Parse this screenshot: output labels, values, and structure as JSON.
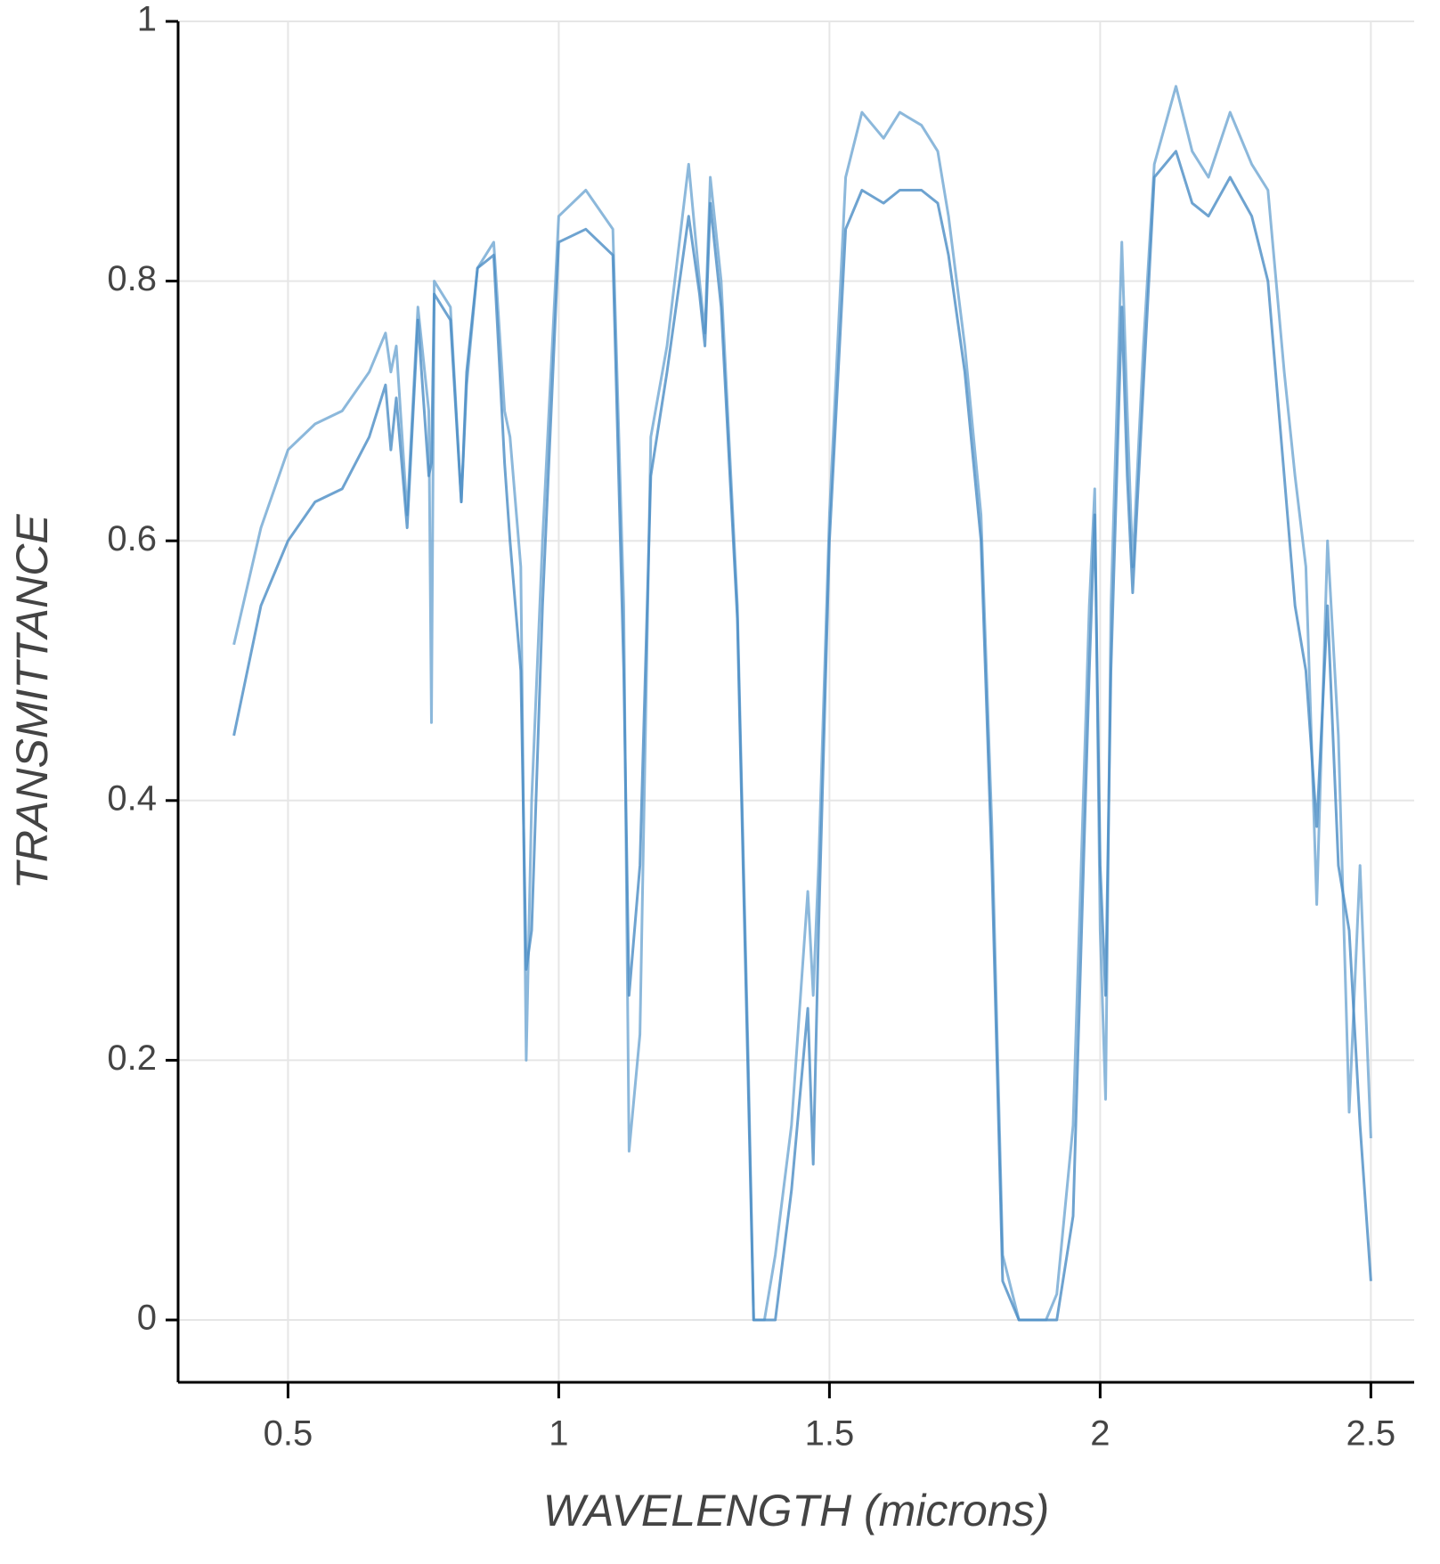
{
  "chart_data": {
    "type": "line",
    "x_label": "WAVELENGTH (microns)",
    "y_label": "TRANSMITTANCE",
    "x": [
      0.4,
      0.45,
      0.5,
      0.55,
      0.6,
      0.65,
      0.68,
      0.69,
      0.7,
      0.72,
      0.74,
      0.76,
      0.765,
      0.77,
      0.8,
      0.82,
      0.83,
      0.85,
      0.88,
      0.9,
      0.91,
      0.93,
      0.94,
      0.95,
      0.97,
      1.0,
      1.05,
      1.1,
      1.12,
      1.13,
      1.15,
      1.17,
      1.2,
      1.24,
      1.26,
      1.27,
      1.28,
      1.3,
      1.33,
      1.35,
      1.36,
      1.38,
      1.4,
      1.43,
      1.46,
      1.47,
      1.48,
      1.5,
      1.53,
      1.56,
      1.6,
      1.63,
      1.67,
      1.7,
      1.72,
      1.75,
      1.78,
      1.8,
      1.82,
      1.85,
      1.9,
      1.92,
      1.95,
      1.98,
      1.99,
      2.0,
      2.01,
      2.02,
      2.04,
      2.05,
      2.06,
      2.08,
      2.1,
      2.14,
      2.17,
      2.2,
      2.24,
      2.28,
      2.31,
      2.34,
      2.36,
      2.38,
      2.4,
      2.42,
      2.44,
      2.46,
      2.48,
      2.5
    ],
    "series": [
      {
        "color": "#6fa6d2",
        "values": [
          0.52,
          0.61,
          0.67,
          0.69,
          0.7,
          0.73,
          0.76,
          0.73,
          0.75,
          0.62,
          0.78,
          0.7,
          0.46,
          0.8,
          0.78,
          0.63,
          0.72,
          0.81,
          0.83,
          0.7,
          0.68,
          0.58,
          0.2,
          0.4,
          0.6,
          0.85,
          0.87,
          0.84,
          0.55,
          0.13,
          0.22,
          0.68,
          0.75,
          0.89,
          0.8,
          0.76,
          0.88,
          0.8,
          0.55,
          0.2,
          0.0,
          0.0,
          0.05,
          0.15,
          0.33,
          0.25,
          0.35,
          0.62,
          0.88,
          0.93,
          0.91,
          0.93,
          0.92,
          0.9,
          0.85,
          0.75,
          0.62,
          0.38,
          0.05,
          0.0,
          0.0,
          0.02,
          0.15,
          0.55,
          0.64,
          0.3,
          0.17,
          0.55,
          0.83,
          0.7,
          0.58,
          0.75,
          0.89,
          0.95,
          0.9,
          0.88,
          0.93,
          0.89,
          0.87,
          0.73,
          0.65,
          0.58,
          0.32,
          0.6,
          0.45,
          0.16,
          0.35,
          0.14
        ]
      },
      {
        "color": "#4a8cc4",
        "values": [
          0.45,
          0.55,
          0.6,
          0.63,
          0.64,
          0.68,
          0.72,
          0.67,
          0.71,
          0.61,
          0.77,
          0.65,
          0.66,
          0.79,
          0.77,
          0.63,
          0.73,
          0.81,
          0.82,
          0.66,
          0.6,
          0.5,
          0.27,
          0.3,
          0.55,
          0.83,
          0.84,
          0.82,
          0.5,
          0.25,
          0.35,
          0.65,
          0.73,
          0.85,
          0.79,
          0.75,
          0.86,
          0.78,
          0.54,
          0.18,
          0.0,
          0.0,
          0.0,
          0.1,
          0.24,
          0.12,
          0.3,
          0.6,
          0.84,
          0.87,
          0.86,
          0.87,
          0.87,
          0.86,
          0.82,
          0.73,
          0.6,
          0.35,
          0.03,
          0.0,
          0.0,
          0.0,
          0.08,
          0.5,
          0.62,
          0.35,
          0.25,
          0.5,
          0.78,
          0.65,
          0.56,
          0.72,
          0.88,
          0.9,
          0.86,
          0.85,
          0.88,
          0.85,
          0.8,
          0.65,
          0.55,
          0.5,
          0.38,
          0.55,
          0.35,
          0.3,
          0.15,
          0.03
        ]
      }
    ],
    "xlim": [
      0.297,
      2.58
    ],
    "ylim": [
      -0.048,
      1
    ],
    "xticks": [
      0.5,
      1,
      1.5,
      2,
      2.5
    ],
    "yticks": [
      0,
      0.2,
      0.4,
      0.6,
      0.8,
      1
    ],
    "grid": true
  }
}
